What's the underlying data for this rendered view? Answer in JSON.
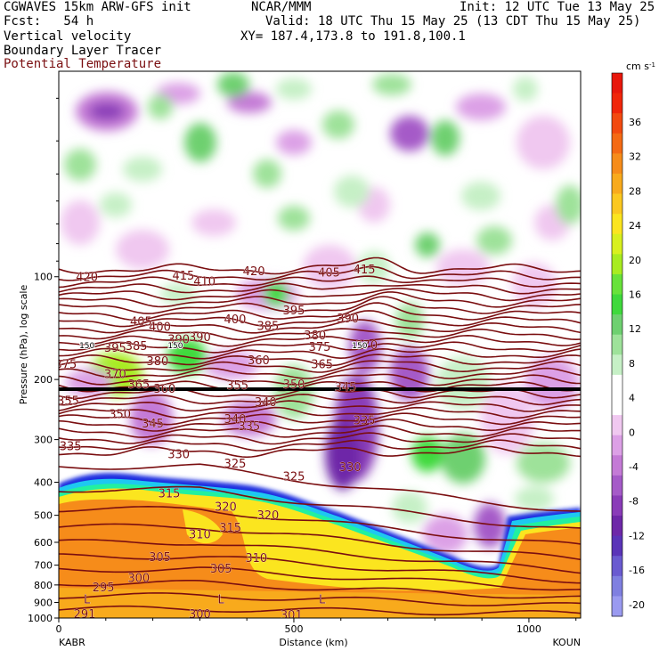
{
  "header": {
    "line1_left": "CGWAVES 15km ARW-GFS init",
    "line1_center": "NCAR/MMM",
    "line1_right": "Init: 12 UTC Tue 13 May 25",
    "line2_left": "Fcst:   54 h",
    "line2_right": "Valid: 18 UTC Thu 15 May 25 (13 CDT Thu 15 May 25)",
    "line3_left": "Vertical velocity",
    "line3_right": "XY= 187.4,173.8 to 191.8,100.1",
    "line4_left": "Boundary Layer Tracer",
    "line5_left": "Potential Temperature"
  },
  "colors": {
    "theta_contour": "#7a0e10",
    "theta_label": "#7a0e10",
    "frame": "#000000"
  },
  "chart_data": {
    "type": "heatmap",
    "title": "",
    "xlabel": "Distance (km)",
    "ylabel": "Pressure (hPa), log scale",
    "x_ticks": [
      0,
      500,
      1000
    ],
    "xlim": [
      0,
      1110
    ],
    "y_ticks": [
      100,
      200,
      300,
      400,
      500,
      600,
      700,
      800,
      900,
      1000
    ],
    "y_scale": "log",
    "ylim": [
      1000,
      25
    ],
    "x_endpoints": {
      "left": "KABR",
      "right": "KOUN"
    },
    "colorbar": {
      "units": "cm s",
      "units_exp": "-1",
      "labels": [
        "36",
        "32",
        "28",
        "24",
        "20",
        "16",
        "12",
        "8",
        "4",
        "0",
        "-4",
        "-8",
        "-12",
        "-16",
        "-20"
      ],
      "colors": [
        "#e8170c",
        "#f0260a",
        "#f24a10",
        "#f46a14",
        "#f68c1a",
        "#f8aa1c",
        "#fbc820",
        "#fbe51f",
        "#d8f01e",
        "#a8ec20",
        "#68e23a",
        "#3fd93c",
        "#6ed070",
        "#9ee29a",
        "#c6f0c6",
        "#ffffff",
        "#ffffff",
        "#f0c8f0",
        "#dca0e6",
        "#c47ad6",
        "#a55ac8",
        "#8a3cb8",
        "#6e28a8",
        "#5a34b8",
        "#6a5ad0",
        "#7f7fe0",
        "#9a9af0"
      ]
    },
    "theta_labels": [
      {
        "x": 60,
        "p": 100,
        "v": "420"
      },
      {
        "x": 265,
        "p": 99,
        "v": "415"
      },
      {
        "x": 310,
        "p": 103,
        "v": "410"
      },
      {
        "x": 415,
        "p": 96,
        "v": "420"
      },
      {
        "x": 575,
        "p": 97,
        "v": "405"
      },
      {
        "x": 650,
        "p": 95,
        "v": "415"
      },
      {
        "x": 175,
        "p": 135,
        "v": "405"
      },
      {
        "x": 215,
        "p": 140,
        "v": "400"
      },
      {
        "x": 375,
        "p": 133,
        "v": "400"
      },
      {
        "x": 445,
        "p": 139,
        "v": "385"
      },
      {
        "x": 500,
        "p": 125,
        "v": "395"
      },
      {
        "x": 255,
        "p": 152,
        "v": "390"
      },
      {
        "x": 300,
        "p": 150,
        "v": "390"
      },
      {
        "x": 545,
        "p": 148,
        "v": "380"
      },
      {
        "x": 615,
        "p": 132,
        "v": "390"
      },
      {
        "x": 120,
        "p": 161,
        "v": "395"
      },
      {
        "x": 165,
        "p": 159,
        "v": "385"
      },
      {
        "x": 210,
        "p": 176,
        "v": "380"
      },
      {
        "x": 555,
        "p": 160,
        "v": "375"
      },
      {
        "x": 655,
        "p": 158,
        "v": "370"
      },
      {
        "x": 15,
        "p": 180,
        "v": "375"
      },
      {
        "x": 120,
        "p": 192,
        "v": "370"
      },
      {
        "x": 425,
        "p": 175,
        "v": "360"
      },
      {
        "x": 560,
        "p": 180,
        "v": "365"
      },
      {
        "x": 170,
        "p": 206,
        "v": "365"
      },
      {
        "x": 225,
        "p": 212,
        "v": "360"
      },
      {
        "x": 380,
        "p": 207,
        "v": "355"
      },
      {
        "x": 500,
        "p": 206,
        "v": "350"
      },
      {
        "x": 610,
        "p": 210,
        "v": "345"
      },
      {
        "x": 20,
        "p": 230,
        "v": "355"
      },
      {
        "x": 130,
        "p": 252,
        "v": "350"
      },
      {
        "x": 200,
        "p": 268,
        "v": "345"
      },
      {
        "x": 375,
        "p": 260,
        "v": "340"
      },
      {
        "x": 440,
        "p": 232,
        "v": "340"
      },
      {
        "x": 650,
        "p": 263,
        "v": "335"
      },
      {
        "x": 405,
        "p": 273,
        "v": "335"
      },
      {
        "x": 25,
        "p": 313,
        "v": "335"
      },
      {
        "x": 255,
        "p": 330,
        "v": "330"
      },
      {
        "x": 375,
        "p": 352,
        "v": "325"
      },
      {
        "x": 500,
        "p": 384,
        "v": "325"
      },
      {
        "x": 620,
        "p": 360,
        "v": "330"
      },
      {
        "x": 235,
        "p": 430,
        "v": "315"
      },
      {
        "x": 355,
        "p": 470,
        "v": "320"
      },
      {
        "x": 445,
        "p": 498,
        "v": "320"
      },
      {
        "x": 300,
        "p": 567,
        "v": "310"
      },
      {
        "x": 365,
        "p": 542,
        "v": "315"
      },
      {
        "x": 420,
        "p": 665,
        "v": "310"
      },
      {
        "x": 215,
        "p": 660,
        "v": "305"
      },
      {
        "x": 345,
        "p": 715,
        "v": "305"
      },
      {
        "x": 170,
        "p": 760,
        "v": "300"
      },
      {
        "x": 95,
        "p": 810,
        "v": "295"
      },
      {
        "x": 55,
        "p": 970,
        "v": "291"
      },
      {
        "x": 300,
        "p": 970,
        "v": "300"
      },
      {
        "x": 495,
        "p": 975,
        "v": "301"
      }
    ],
    "low_markers": [
      {
        "x": 60,
        "p": 880,
        "v": "L"
      },
      {
        "x": 345,
        "p": 880,
        "v": "L"
      },
      {
        "x": 560,
        "p": 880,
        "v": "L"
      }
    ],
    "tracer_labels": [
      {
        "x": 60,
        "p": 159,
        "v": "150"
      },
      {
        "x": 248,
        "p": 159,
        "v": "150"
      },
      {
        "x": 640,
        "p": 159,
        "v": "150"
      }
    ]
  }
}
